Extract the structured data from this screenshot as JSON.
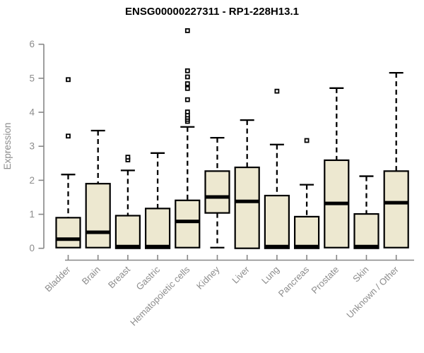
{
  "title": "ENSG00000227311 - RP1-228H13.1",
  "chart_data": {
    "type": "boxplot",
    "title": "ENSG00000227311 - RP1-228H13.1",
    "xlabel": "",
    "ylabel": "Expression",
    "ylim": [
      0,
      6
    ],
    "yticks": [
      0,
      1,
      2,
      3,
      4,
      5,
      6
    ],
    "grid": false,
    "legend": "none",
    "colors": {
      "box_fill": "#EDE8D0",
      "box_stroke": "#000000",
      "median": "#000000",
      "whisker": "#000000",
      "axis": "#878787",
      "tick_label": "#8c8c8c",
      "title": "#000000",
      "background": "#ffffff"
    },
    "categories": [
      "Bladder",
      "Brain",
      "Breast",
      "Gastric",
      "Hematopoietic cells",
      "Kidney",
      "Liver",
      "Lung",
      "Pancreas",
      "Prostate",
      "Skin",
      "Unknown / Other"
    ],
    "boxes": [
      {
        "category": "Bladder",
        "low": 0.02,
        "q1": 0.02,
        "median": 0.27,
        "q3": 0.9,
        "high": 2.17,
        "outliers": [
          3.3,
          4.96
        ]
      },
      {
        "category": "Brain",
        "low": 0.02,
        "q1": 0.02,
        "median": 0.47,
        "q3": 1.9,
        "high": 3.46,
        "outliers": []
      },
      {
        "category": "Breast",
        "low": 0.0,
        "q1": 0.0,
        "median": 0.05,
        "q3": 0.96,
        "high": 2.29,
        "outliers": [
          2.6,
          2.68
        ]
      },
      {
        "category": "Gastric",
        "low": 0.0,
        "q1": 0.0,
        "median": 0.05,
        "q3": 1.17,
        "high": 2.8,
        "outliers": []
      },
      {
        "category": "Hematopoietic cells",
        "low": 0.02,
        "q1": 0.02,
        "median": 0.79,
        "q3": 1.41,
        "high": 3.57,
        "outliers": [
          3.73,
          3.79,
          3.85,
          3.92,
          4.01,
          4.37,
          4.7,
          4.84,
          5.04,
          5.22,
          6.4
        ]
      },
      {
        "category": "Kidney",
        "low": 0.02,
        "q1": 1.04,
        "median": 1.51,
        "q3": 2.27,
        "high": 3.25,
        "outliers": []
      },
      {
        "category": "Liver",
        "low": 0.0,
        "q1": 0.0,
        "median": 1.38,
        "q3": 2.38,
        "high": 3.77,
        "outliers": []
      },
      {
        "category": "Lung",
        "low": 0.0,
        "q1": 0.0,
        "median": 0.05,
        "q3": 1.55,
        "high": 3.05,
        "outliers": [
          4.62
        ]
      },
      {
        "category": "Pancreas",
        "low": 0.0,
        "q1": 0.0,
        "median": 0.05,
        "q3": 0.93,
        "high": 1.87,
        "outliers": [
          3.17
        ]
      },
      {
        "category": "Prostate",
        "low": 0.02,
        "q1": 0.02,
        "median": 1.32,
        "q3": 2.59,
        "high": 4.71,
        "outliers": []
      },
      {
        "category": "Skin",
        "low": 0.0,
        "q1": 0.0,
        "median": 0.05,
        "q3": 1.01,
        "high": 2.12,
        "outliers": []
      },
      {
        "category": "Unknown / Other",
        "low": 0.02,
        "q1": 0.02,
        "median": 1.34,
        "q3": 2.27,
        "high": 5.16,
        "outliers": []
      }
    ]
  }
}
